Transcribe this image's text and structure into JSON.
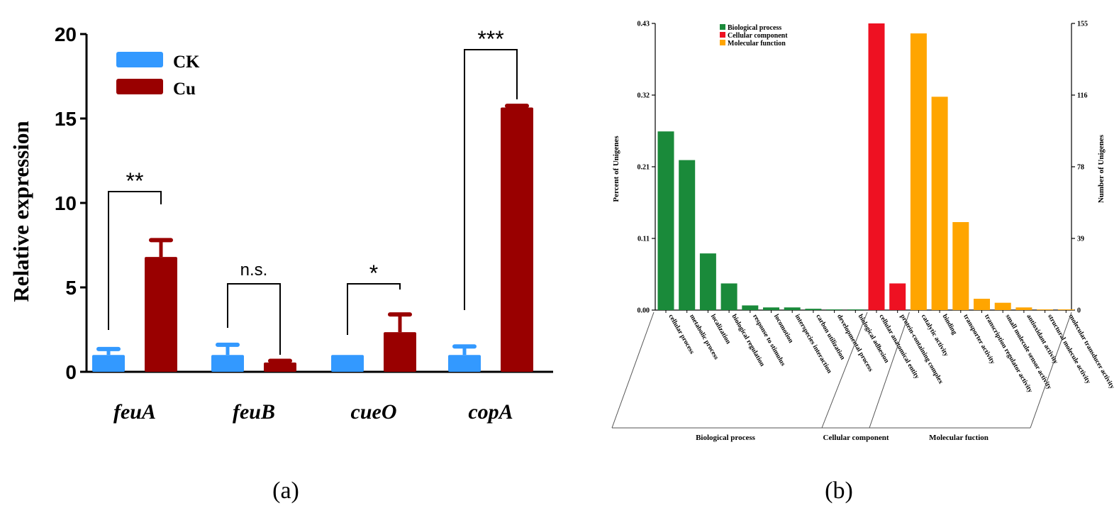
{
  "panel_labels": {
    "a": "(a)",
    "b": "(b)"
  },
  "colors": {
    "ck": "#3399ff",
    "cu": "#990000",
    "biological_process": "#1a8a3a",
    "cellular_component": "#ee1122",
    "molecular_function": "#ffa500"
  },
  "chart_data": [
    {
      "type": "bar",
      "panel": "(a)",
      "ylabel": "Relative expression",
      "xlabel": "",
      "ylim": [
        0,
        20
      ],
      "yticks": [
        0,
        5,
        10,
        15,
        20
      ],
      "categories": [
        "feuA",
        "feuB",
        "cueO",
        "copA"
      ],
      "legend_position": "top-left",
      "series": [
        {
          "name": "CK",
          "values": [
            1.0,
            1.0,
            1.0,
            1.0
          ],
          "errors": [
            0.35,
            0.6,
            0.0,
            0.5
          ]
        },
        {
          "name": "Cu",
          "values": [
            6.8,
            0.55,
            2.35,
            15.65
          ],
          "errors": [
            1.0,
            0.1,
            1.05,
            0.1
          ]
        }
      ],
      "significance": [
        "**",
        "n.s.",
        "*",
        "***"
      ]
    },
    {
      "type": "bar",
      "panel": "(b)",
      "ylabel": "Percent of Unigenes",
      "ylabel_right": "Number of Unigenes",
      "yticks_left": [
        "0.00",
        "0.11",
        "0.21",
        "0.32",
        "0.43"
      ],
      "yticks_right": [
        "0",
        "39",
        "78",
        "116",
        "155"
      ],
      "ylim": [
        0,
        0.43
      ],
      "legend_position": "top-left",
      "groups": [
        {
          "name": "Biological process",
          "group_label": "Biological process",
          "categories": [
            "cellular process",
            "metabolic process",
            "localization",
            "biological regulation",
            "response to stimulus",
            "locomotion",
            "interspecies interaction",
            "carbon utilization",
            "developmental process",
            "biological adhesion"
          ],
          "values": [
            0.268,
            0.225,
            0.085,
            0.04,
            0.007,
            0.004,
            0.004,
            0.002,
            0.001,
            0.001
          ]
        },
        {
          "name": "Cellular component",
          "group_label": "Cellular component",
          "categories": [
            "cellular anatomical entity",
            "protein-containing complex"
          ],
          "values": [
            0.43,
            0.04
          ]
        },
        {
          "name": "Molecular function",
          "group_label": "Molecular fuction",
          "categories": [
            "catalytic activity",
            "binding",
            "transporter activity",
            "transcription regulator activity",
            "small molecule sensor activity",
            "antioxidant activity",
            "structural molecule activity",
            "molecular transducer activity"
          ],
          "values": [
            0.415,
            0.32,
            0.132,
            0.017,
            0.011,
            0.004,
            0.001,
            0.001
          ]
        }
      ]
    }
  ]
}
